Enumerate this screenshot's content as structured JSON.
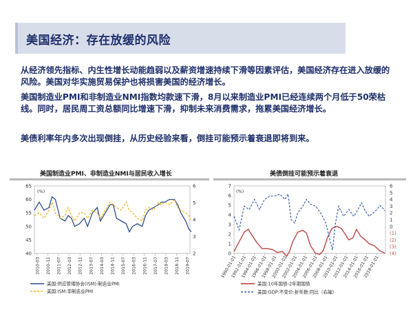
{
  "slide": {
    "title": "美国经济：存在放缓的风险",
    "paragraphs": [
      "从经济领先指标、内生性增长动能趋弱以及薪资增速持续下滑等因素评估，美国经济存在进入放缓的风险。美国对华实施贸易保护也将损害美国的经济增长。",
      "美国制造业PMI和非制造业NMI指数均款速下滑，8月以来制造业PMI已经连续两个月低于50荣枯线。同时，居民周工资总额同比增速下滑，抑制未来消费需求，拖累美国经济增长。",
      "美债利率年内多次出现倒挂，从历史经验来看，倒挂可能预示着衰退即将到来。"
    ]
  },
  "colors": {
    "title_text": "#1f2f6b",
    "title_bg": "#d8ddea",
    "series_blue": "#2b4a8b",
    "series_gold": "#f2b221",
    "series_red": "#c0504d",
    "series_dash": "#3b5ea8"
  },
  "chart_data": [
    {
      "type": "line",
      "title": "美国制造业PMI、非制造业NMI与居民收入增长",
      "y_left_label": "(%)",
      "y_left_lim": [
        40,
        65
      ],
      "y_left_ticks": [
        "65",
        "60",
        "55",
        "50",
        "45",
        "40"
      ],
      "y_right_lim": [
        2,
        6
      ],
      "y_right_ticks": [
        "6",
        "5",
        "4",
        "3",
        "2"
      ],
      "x_ticks": [
        "2010-03",
        "2010-11",
        "2011-07",
        "2012-03",
        "2012-11",
        "2013-07",
        "2014-03",
        "2014-11",
        "2015-07",
        "2016-03",
        "2016-11",
        "2017-07",
        "2018-03",
        "2018-11",
        "2019-07"
      ],
      "x_range": [
        "2010-01",
        "2019-09"
      ],
      "legend_position": "bottom",
      "series": [
        {
          "name": "美国:供应管理协会(ISM):制造业PMI",
          "axis": "left",
          "style": "solid",
          "points": [
            [
              2010.0,
              56
            ],
            [
              2010.3,
              59
            ],
            [
              2010.6,
              56
            ],
            [
              2010.9,
              57
            ],
            [
              2011.1,
              61
            ],
            [
              2011.3,
              60
            ],
            [
              2011.6,
              53
            ],
            [
              2011.9,
              52
            ],
            [
              2012.1,
              54
            ],
            [
              2012.3,
              53
            ],
            [
              2012.5,
              50
            ],
            [
              2012.8,
              51
            ],
            [
              2013.1,
              53
            ],
            [
              2013.3,
              50
            ],
            [
              2013.6,
              55
            ],
            [
              2013.9,
              57
            ],
            [
              2014.1,
              52
            ],
            [
              2014.4,
              55
            ],
            [
              2014.7,
              58
            ],
            [
              2014.9,
              58
            ],
            [
              2015.1,
              53
            ],
            [
              2015.4,
              52
            ],
            [
              2015.7,
              51
            ],
            [
              2015.9,
              48
            ],
            [
              2016.1,
              50
            ],
            [
              2016.4,
              51
            ],
            [
              2016.7,
              50
            ],
            [
              2016.9,
              54
            ],
            [
              2017.1,
              56
            ],
            [
              2017.4,
              57
            ],
            [
              2017.7,
              58
            ],
            [
              2017.9,
              59
            ],
            [
              2018.1,
              59
            ],
            [
              2018.4,
              60
            ],
            [
              2018.7,
              60
            ],
            [
              2018.9,
              58
            ],
            [
              2019.1,
              55
            ],
            [
              2019.4,
              52
            ],
            [
              2019.6,
              49
            ],
            [
              2019.75,
              48
            ]
          ]
        },
        {
          "name": "美国:ISM:非制造业PMI",
          "axis": "left",
          "style": "dashed",
          "points": [
            [
              2010.0,
              54
            ],
            [
              2010.3,
              55
            ],
            [
              2010.6,
              53
            ],
            [
              2010.9,
              56
            ],
            [
              2011.1,
              59
            ],
            [
              2011.3,
              55
            ],
            [
              2011.6,
              53
            ],
            [
              2011.9,
              54
            ],
            [
              2012.1,
              57
            ],
            [
              2012.3,
              54
            ],
            [
              2012.5,
              52
            ],
            [
              2012.8,
              55
            ],
            [
              2013.1,
              55
            ],
            [
              2013.3,
              53
            ],
            [
              2013.6,
              56
            ],
            [
              2013.9,
              55
            ],
            [
              2014.1,
              53
            ],
            [
              2014.4,
              56
            ],
            [
              2014.7,
              59
            ],
            [
              2014.9,
              58
            ],
            [
              2015.1,
              57
            ],
            [
              2015.4,
              56
            ],
            [
              2015.7,
              59
            ],
            [
              2015.9,
              56
            ],
            [
              2016.1,
              55
            ],
            [
              2016.4,
              53
            ],
            [
              2016.7,
              52
            ],
            [
              2016.9,
              56
            ],
            [
              2017.1,
              57
            ],
            [
              2017.4,
              56
            ],
            [
              2017.7,
              59
            ],
            [
              2017.9,
              58
            ],
            [
              2018.1,
              59
            ],
            [
              2018.4,
              58
            ],
            [
              2018.7,
              60
            ],
            [
              2018.9,
              57
            ],
            [
              2019.1,
              56
            ],
            [
              2019.4,
              55
            ],
            [
              2019.6,
              54
            ],
            [
              2019.75,
              52
            ]
          ]
        }
      ]
    },
    {
      "type": "line",
      "title": "美债倒挂可能预示着衰退",
      "y_left_label": "(%)",
      "y_left_lim": [
        0,
        7
      ],
      "y_left_ticks": [
        "7",
        "6",
        "5",
        "4",
        "3",
        "2",
        "1",
        "0"
      ],
      "y_right_lim": [
        -4,
        6
      ],
      "y_right_ticks": [
        "6",
        "5",
        "4",
        "3",
        "2",
        "1",
        "0",
        "(1)",
        "(2)",
        "(3)",
        "(4)"
      ],
      "x_ticks": [
        "1990-01-01",
        "1992-01-01",
        "1994-01-01",
        "1996-01-01",
        "1998-01-01",
        "2000-01-01",
        "2002-01-01",
        "2004-01-01",
        "2006-01-01",
        "2008-01-01",
        "2010-01-01",
        "2012-01-01",
        "2014-01-01",
        "2016-01-01",
        "2018-01-01"
      ],
      "x_range": [
        1990,
        2019.7
      ],
      "legend_position": "bottom",
      "series": [
        {
          "name": "美国:10年国债-2年期国债",
          "axis": "left",
          "style": "solid",
          "points": [
            [
              1990.0,
              0.2
            ],
            [
              1991.0,
              1.2
            ],
            [
              1992.0,
              2.2
            ],
            [
              1992.8,
              2.5
            ],
            [
              1993.5,
              1.9
            ],
            [
              1994.5,
              1.1
            ],
            [
              1995.5,
              0.5
            ],
            [
              1996.5,
              0.5
            ],
            [
              1997.5,
              0.4
            ],
            [
              1998.5,
              0.1
            ],
            [
              1999.5,
              0.2
            ],
            [
              2000.3,
              -0.3
            ],
            [
              2000.9,
              0.2
            ],
            [
              2001.5,
              1.2
            ],
            [
              2002.5,
              2.2
            ],
            [
              2003.5,
              2.4
            ],
            [
              2004.2,
              2.1
            ],
            [
              2005.0,
              0.8
            ],
            [
              2006.0,
              0.0
            ],
            [
              2006.8,
              -0.1
            ],
            [
              2007.5,
              0.3
            ],
            [
              2008.3,
              1.6
            ],
            [
              2009.2,
              2.6
            ],
            [
              2010.2,
              2.8
            ],
            [
              2011.0,
              2.6
            ],
            [
              2011.8,
              2.0
            ],
            [
              2012.5,
              1.4
            ],
            [
              2013.3,
              1.6
            ],
            [
              2014.0,
              2.5
            ],
            [
              2014.8,
              1.8
            ],
            [
              2015.5,
              1.5
            ],
            [
              2016.5,
              1.0
            ],
            [
              2017.5,
              0.8
            ],
            [
              2018.5,
              0.3
            ],
            [
              2019.3,
              0.1
            ],
            [
              2019.6,
              0.0
            ]
          ]
        },
        {
          "name": "美国:GDP:不变价:折年数:同比（右轴）",
          "axis": "right",
          "style": "dashed",
          "points": [
            [
              1990.0,
              1.5
            ],
            [
              1991.0,
              -0.5
            ],
            [
              1992.0,
              3.0
            ],
            [
              1993.0,
              2.5
            ],
            [
              1994.0,
              4.0
            ],
            [
              1995.0,
              2.5
            ],
            [
              1996.0,
              4.0
            ],
            [
              1997.0,
              4.5
            ],
            [
              1998.0,
              4.5
            ],
            [
              1999.0,
              4.8
            ],
            [
              2000.0,
              4.0
            ],
            [
              2000.6,
              4.8
            ],
            [
              2001.2,
              1.0
            ],
            [
              2001.9,
              0.5
            ],
            [
              2002.5,
              2.0
            ],
            [
              2003.5,
              3.0
            ],
            [
              2004.2,
              4.0
            ],
            [
              2005.0,
              3.3
            ],
            [
              2006.0,
              3.0
            ],
            [
              2007.0,
              2.0
            ],
            [
              2008.0,
              0.5
            ],
            [
              2008.8,
              -2.0
            ],
            [
              2009.3,
              -3.5
            ],
            [
              2009.9,
              0.5
            ],
            [
              2010.5,
              3.0
            ],
            [
              2011.5,
              1.5
            ],
            [
              2012.5,
              2.5
            ],
            [
              2013.5,
              1.5
            ],
            [
              2014.3,
              2.5
            ],
            [
              2015.0,
              3.5
            ],
            [
              2015.8,
              2.2
            ],
            [
              2016.5,
              1.5
            ],
            [
              2017.3,
              2.0
            ],
            [
              2018.0,
              2.5
            ],
            [
              2018.6,
              3.1
            ],
            [
              2019.2,
              2.7
            ],
            [
              2019.6,
              2.3
            ]
          ]
        }
      ]
    }
  ]
}
